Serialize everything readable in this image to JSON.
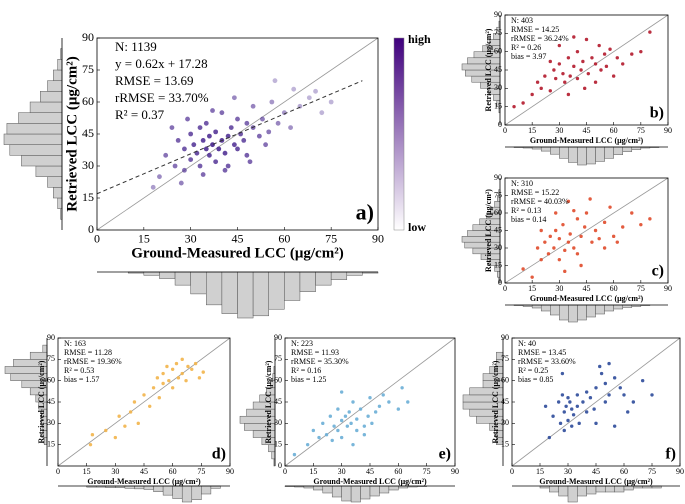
{
  "chart_data": [
    {
      "type": "scatter",
      "panel": "a)",
      "stats": [
        "N: 1139",
        "y = 0.62x + 17.28",
        "RMSE = 13.69",
        "rRMSE = 33.70%",
        "R² = 0.37"
      ],
      "xlabel": "Ground-Measured LCC (μg/cm²)",
      "ylabel": "Retrieved LCC (μg/cm²)",
      "xlim": [
        0,
        90
      ],
      "ylim": [
        0,
        90
      ],
      "xticks": [
        0,
        15,
        30,
        45,
        60,
        75,
        90
      ],
      "yticks": [
        0,
        15,
        30,
        45,
        60,
        75,
        90
      ],
      "color": "#4b2a91",
      "colorbar": {
        "top": "high",
        "bottom": "low",
        "colors": [
          "#3f007d",
          "#ffffff"
        ]
      },
      "fit_line": {
        "x": [
          0,
          85
        ],
        "y": [
          17,
          70
        ]
      },
      "x": [
        20,
        22,
        25,
        26,
        28,
        28,
        30,
        30,
        31,
        32,
        33,
        33,
        34,
        35,
        35,
        36,
        36,
        37,
        38,
        38,
        39,
        40,
        40,
        41,
        42,
        42,
        43,
        44,
        45,
        45,
        46,
        47,
        48,
        48,
        50,
        50,
        52,
        53,
        55,
        56,
        58,
        60,
        62,
        65,
        68,
        70,
        72,
        75,
        18,
        24,
        27,
        29,
        34,
        37,
        41,
        44,
        49,
        54,
        57,
        63
      ],
      "values": [
        25,
        35,
        30,
        42,
        38,
        28,
        45,
        33,
        40,
        36,
        48,
        30,
        42,
        38,
        50,
        35,
        44,
        40,
        32,
        46,
        38,
        42,
        55,
        36,
        44,
        30,
        48,
        40,
        52,
        38,
        45,
        42,
        50,
        35,
        48,
        58,
        44,
        52,
        46,
        60,
        50,
        55,
        48,
        58,
        62,
        65,
        55,
        60,
        20,
        48,
        22,
        52,
        26,
        56,
        28,
        62,
        32,
        40,
        70,
        66
      ],
      "x_hist": {
        "bins": [
          0,
          5,
          10,
          15,
          20,
          25,
          30,
          35,
          40,
          45,
          50,
          55,
          60,
          65,
          70,
          75,
          80,
          85,
          90
        ],
        "counts": [
          0,
          0,
          1,
          3,
          6,
          12,
          20,
          30,
          38,
          42,
          40,
          34,
          26,
          18,
          12,
          7,
          3,
          1
        ]
      },
      "y_hist": {
        "bins": [
          0,
          5,
          10,
          15,
          20,
          25,
          30,
          35,
          40,
          45,
          50,
          55,
          60,
          65,
          70,
          75,
          80,
          85,
          90
        ],
        "counts": [
          0,
          1,
          3,
          6,
          10,
          18,
          28,
          36,
          40,
          38,
          30,
          22,
          15,
          10,
          6,
          3,
          1,
          0
        ]
      }
    },
    {
      "type": "scatter",
      "panel": "b)",
      "stats": [
        "N: 403",
        "RMSE = 14.25",
        "rRMSE = 36.24%",
        "R² = 0.26",
        "bias = 3.97"
      ],
      "xlabel": "Ground-Measured LCC (μg/cm²)",
      "ylabel": "Retrieved LCC (μg/cm²)",
      "xlim": [
        0,
        90
      ],
      "ylim": [
        0,
        90
      ],
      "xticks": [
        0,
        15,
        30,
        45,
        60,
        75,
        90
      ],
      "yticks": [
        0,
        15,
        30,
        45,
        60,
        75,
        90
      ],
      "color": "#b2182b",
      "x": [
        5,
        10,
        15,
        18,
        20,
        22,
        25,
        27,
        28,
        30,
        32,
        33,
        35,
        36,
        38,
        40,
        40,
        42,
        43,
        45,
        46,
        48,
        50,
        52,
        53,
        55,
        56,
        58,
        60,
        62,
        65,
        70,
        75,
        80,
        30,
        38,
        44,
        50,
        25,
        35
      ],
      "values": [
        15,
        18,
        25,
        35,
        30,
        40,
        28,
        45,
        38,
        50,
        42,
        35,
        55,
        40,
        48,
        60,
        38,
        45,
        52,
        70,
        42,
        55,
        50,
        65,
        45,
        58,
        48,
        62,
        40,
        55,
        50,
        58,
        60,
        76,
        65,
        72,
        30,
        35,
        52,
        25
      ],
      "x_hist": {
        "bins": [
          0,
          5,
          10,
          15,
          20,
          25,
          30,
          35,
          40,
          45,
          50,
          55,
          60,
          65,
          70,
          75,
          80,
          85,
          90
        ],
        "counts": [
          0,
          1,
          2,
          4,
          8,
          14,
          22,
          30,
          35,
          33,
          28,
          22,
          15,
          9,
          5,
          2,
          1,
          0
        ]
      },
      "y_hist": {
        "bins": [
          0,
          5,
          10,
          15,
          20,
          25,
          30,
          35,
          40,
          45,
          50,
          55,
          60,
          65,
          70,
          75,
          80,
          85,
          90
        ],
        "counts": [
          0,
          0,
          1,
          3,
          6,
          10,
          18,
          26,
          32,
          35,
          30,
          24,
          16,
          10,
          6,
          3,
          1,
          0
        ]
      }
    },
    {
      "type": "scatter",
      "panel": "c)",
      "stats": [
        "N: 310",
        "RMSE = 15.22",
        "rRMSE = 40.03%",
        "R² = 0.13",
        "bias = 0.14"
      ],
      "xlabel": "Ground-Measured LCC (μg/cm²)",
      "ylabel": "Retrieved LCC (μg/cm²)",
      "xlim": [
        0,
        90
      ],
      "ylim": [
        0,
        90
      ],
      "xticks": [
        0,
        15,
        30,
        45,
        60,
        75,
        90
      ],
      "yticks": [
        0,
        15,
        30,
        45,
        60,
        75,
        90
      ],
      "color": "#e04a2a",
      "x": [
        10,
        15,
        18,
        20,
        22,
        24,
        25,
        27,
        28,
        30,
        30,
        32,
        33,
        35,
        36,
        38,
        40,
        40,
        42,
        44,
        45,
        48,
        50,
        52,
        55,
        58,
        60,
        65,
        70,
        75,
        28,
        35,
        42,
        55,
        20,
        33,
        38,
        47,
        62,
        80
      ],
      "values": [
        12,
        5,
        30,
        20,
        35,
        25,
        40,
        30,
        45,
        20,
        38,
        50,
        28,
        35,
        42,
        30,
        55,
        25,
        40,
        48,
        60,
        35,
        45,
        38,
        52,
        65,
        40,
        48,
        60,
        50,
        60,
        70,
        15,
        30,
        45,
        10,
        62,
        72,
        35,
        55
      ],
      "x_hist": {
        "bins": [
          0,
          5,
          10,
          15,
          20,
          25,
          30,
          35,
          40,
          45,
          50,
          55,
          60,
          65,
          70,
          75,
          80,
          85,
          90
        ],
        "counts": [
          0,
          1,
          3,
          6,
          12,
          20,
          30,
          34,
          30,
          24,
          18,
          12,
          8,
          5,
          3,
          1,
          0,
          0
        ]
      },
      "y_hist": {
        "bins": [
          0,
          5,
          10,
          15,
          20,
          25,
          30,
          35,
          40,
          45,
          50,
          55,
          60,
          65,
          70,
          75,
          80,
          85,
          90
        ],
        "counts": [
          1,
          2,
          4,
          8,
          14,
          20,
          26,
          28,
          24,
          20,
          15,
          10,
          7,
          4,
          2,
          1,
          0,
          0
        ]
      }
    },
    {
      "type": "scatter",
      "panel": "d)",
      "stats": [
        "N: 163",
        "RMSE = 11.28",
        "rRMSE = 19.36%",
        "R² = 0.53",
        "bias = 1.57"
      ],
      "xlabel": "Ground-Measured LCC (μg/cm²)",
      "ylabel": "Retrieved LCC (μg/cm²)",
      "xlim": [
        0,
        90
      ],
      "ylim": [
        0,
        90
      ],
      "xticks": [
        0,
        15,
        30,
        45,
        60,
        75,
        90
      ],
      "yticks": [
        15,
        30,
        45,
        60,
        75,
        90
      ],
      "color": "#f2b44a",
      "x": [
        17,
        18,
        25,
        30,
        32,
        35,
        38,
        40,
        42,
        45,
        48,
        50,
        52,
        53,
        55,
        55,
        57,
        58,
        60,
        60,
        62,
        63,
        65,
        65,
        67,
        68,
        70,
        72,
        74,
        76
      ],
      "values": [
        15,
        22,
        25,
        20,
        35,
        28,
        38,
        45,
        30,
        50,
        42,
        55,
        62,
        48,
        65,
        58,
        70,
        60,
        68,
        55,
        72,
        62,
        65,
        75,
        60,
        70,
        68,
        72,
        62,
        66
      ],
      "x_hist": {
        "bins": [
          0,
          5,
          10,
          15,
          20,
          25,
          30,
          35,
          40,
          45,
          50,
          55,
          60,
          65,
          70,
          75,
          80,
          85,
          90
        ],
        "counts": [
          0,
          0,
          0,
          2,
          2,
          3,
          3,
          4,
          5,
          6,
          10,
          16,
          22,
          28,
          24,
          14,
          4,
          0
        ]
      },
      "y_hist": {
        "bins": [
          0,
          5,
          10,
          15,
          20,
          25,
          30,
          35,
          40,
          45,
          50,
          55,
          60,
          65,
          70,
          75,
          80,
          85,
          90
        ],
        "counts": [
          0,
          0,
          0,
          2,
          3,
          3,
          4,
          4,
          6,
          8,
          12,
          18,
          26,
          30,
          24,
          12,
          3,
          0
        ]
      }
    },
    {
      "type": "scatter",
      "panel": "e)",
      "stats": [
        "N: 223",
        "RMSE = 11.93",
        "rRMSE = 35.30%",
        "R² = 0.16",
        "bias = 1.25"
      ],
      "xlabel": "Ground-Measured LCC (μg/cm²)",
      "ylabel": "Retrieved LCC (μg/cm²)",
      "xlim": [
        0,
        90
      ],
      "ylim": [
        0,
        90
      ],
      "xticks": [
        0,
        15,
        30,
        45,
        60,
        75,
        90
      ],
      "yticks": [
        0,
        15,
        30,
        45,
        60,
        75,
        90
      ],
      "color": "#6aaed6",
      "x": [
        5,
        12,
        15,
        18,
        20,
        22,
        24,
        25,
        26,
        28,
        28,
        30,
        30,
        32,
        33,
        34,
        35,
        36,
        38,
        38,
        40,
        42,
        44,
        45,
        46,
        48,
        50,
        52,
        55,
        60,
        62,
        65,
        30,
        36,
        42
      ],
      "values": [
        8,
        15,
        25,
        20,
        30,
        22,
        35,
        18,
        28,
        40,
        25,
        32,
        20,
        35,
        28,
        38,
        30,
        45,
        25,
        33,
        40,
        28,
        35,
        48,
        30,
        38,
        42,
        50,
        45,
        40,
        55,
        45,
        52,
        15,
        22
      ],
      "x_hist": {
        "bins": [
          0,
          5,
          10,
          15,
          20,
          25,
          30,
          35,
          40,
          45,
          50,
          55,
          60,
          65,
          70,
          75,
          80,
          85,
          90
        ],
        "counts": [
          1,
          2,
          4,
          8,
          14,
          22,
          30,
          32,
          26,
          20,
          14,
          8,
          4,
          2,
          1,
          0,
          0,
          0
        ]
      },
      "y_hist": {
        "bins": [
          0,
          5,
          10,
          15,
          20,
          25,
          30,
          35,
          40,
          45,
          50,
          55,
          60,
          65,
          70,
          75,
          80,
          85,
          90
        ],
        "counts": [
          1,
          3,
          6,
          12,
          20,
          28,
          32,
          26,
          20,
          14,
          8,
          4,
          2,
          1,
          0,
          0,
          0,
          0
        ]
      }
    },
    {
      "type": "scatter",
      "panel": "f)",
      "stats": [
        "N: 40",
        "RMSE = 13.45",
        "rRMSE = 33.60%",
        "R² = 0.25",
        "bias = 0.85"
      ],
      "xlabel": "Ground-Measured LCC (μg/cm²)",
      "ylabel": "Retrieved LCC (μg/cm²)",
      "xlim": [
        0,
        90
      ],
      "ylim": [
        0,
        90
      ],
      "xticks": [
        0,
        15,
        30,
        45,
        60,
        75,
        90
      ],
      "yticks": [
        15,
        30,
        45,
        60,
        75,
        90
      ],
      "color": "#2c4a9a",
      "x": [
        18,
        20,
        22,
        25,
        26,
        27,
        28,
        28,
        29,
        30,
        30,
        31,
        32,
        32,
        33,
        35,
        35,
        36,
        38,
        40,
        40,
        42,
        44,
        45,
        45,
        48,
        50,
        50,
        52,
        52,
        55,
        55,
        58,
        60,
        62,
        65,
        70,
        75,
        27,
        47
      ],
      "values": [
        42,
        20,
        35,
        45,
        30,
        50,
        38,
        25,
        42,
        48,
        32,
        45,
        40,
        28,
        36,
        50,
        42,
        30,
        45,
        52,
        38,
        48,
        40,
        55,
        30,
        65,
        58,
        45,
        72,
        50,
        62,
        28,
        55,
        50,
        38,
        45,
        60,
        50,
        65,
        70
      ],
      "x_hist": {
        "bins": [
          0,
          5,
          10,
          15,
          20,
          25,
          30,
          35,
          40,
          45,
          50,
          55,
          60,
          65,
          70,
          75,
          80,
          85,
          90
        ],
        "counts": [
          0,
          0,
          0,
          1,
          3,
          5,
          8,
          5,
          4,
          3,
          3,
          3,
          2,
          1,
          1,
          1,
          0,
          0
        ]
      },
      "y_hist": {
        "bins": [
          0,
          5,
          10,
          15,
          20,
          25,
          30,
          35,
          40,
          45,
          50,
          55,
          60,
          65,
          70,
          75,
          80,
          85,
          90
        ],
        "counts": [
          0,
          0,
          0,
          1,
          1,
          2,
          4,
          5,
          6,
          6,
          5,
          3,
          3,
          2,
          1,
          1,
          0,
          0
        ]
      }
    }
  ]
}
